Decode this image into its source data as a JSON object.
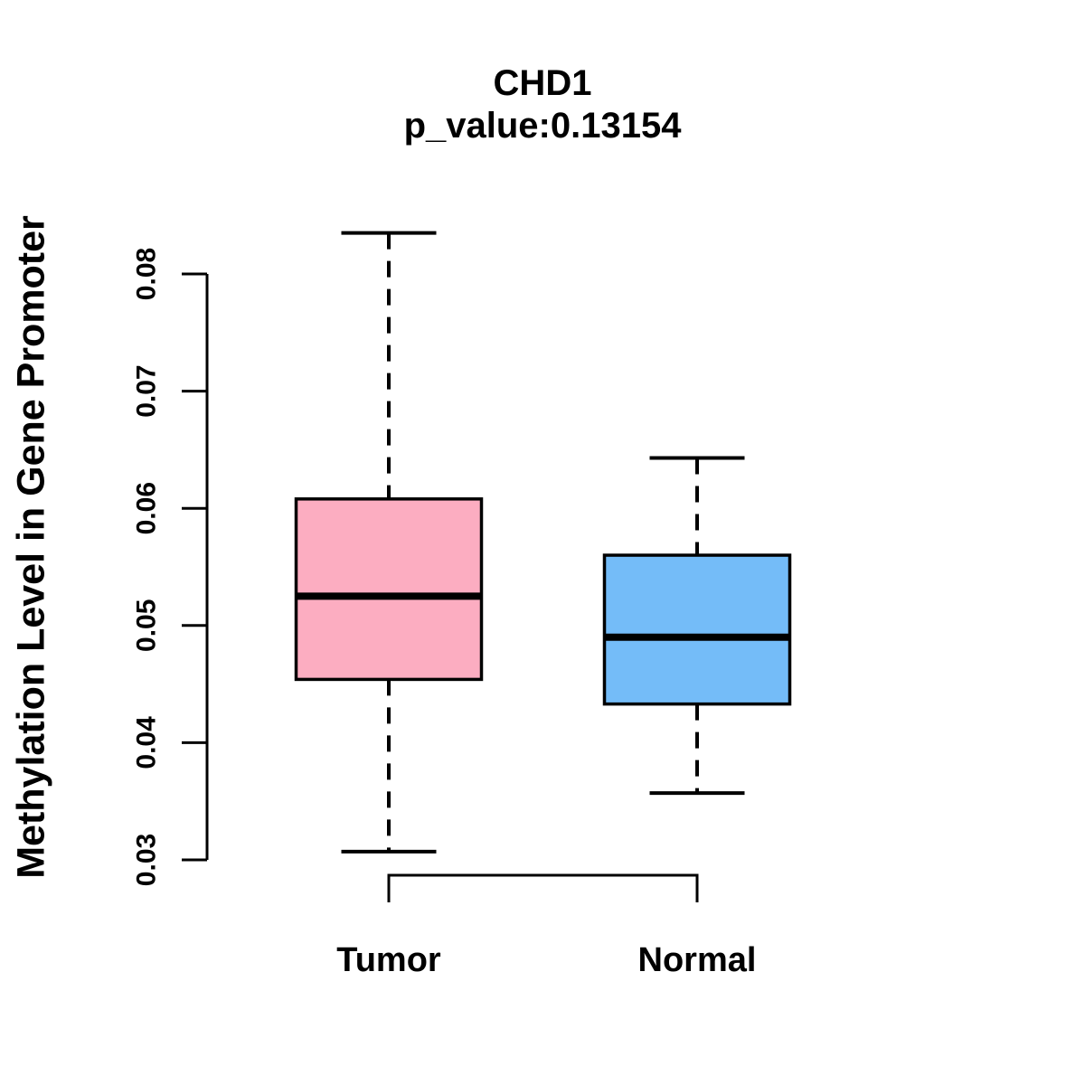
{
  "figure": {
    "background_color": "#ffffff",
    "text_color": "#000000",
    "line_color": "#000000"
  },
  "chart_data": {
    "type": "boxplot",
    "title": "CHD1",
    "subtitle": "p_value:0.13154",
    "xlabel": "",
    "ylabel": "Methylation Level in Gene Promoter",
    "grid": "off",
    "y_axis": {
      "range": [
        0.03,
        0.08
      ],
      "ticks": [
        0.03,
        0.04,
        0.05,
        0.06,
        0.07,
        0.08
      ],
      "tick_labels": [
        "0.03",
        "0.04",
        "0.05",
        "0.06",
        "0.07",
        "0.08"
      ]
    },
    "categories": [
      "Tumor",
      "Normal"
    ],
    "groups": [
      {
        "id": "tumor",
        "label": "Tumor",
        "color": "#FCADC1",
        "lower_whisker": 0.0307,
        "q1": 0.0454,
        "median": 0.0525,
        "q3": 0.0608,
        "upper_whisker": 0.0835,
        "outliers": []
      },
      {
        "id": "normal",
        "label": "Normal",
        "color": "#74BCF8",
        "lower_whisker": 0.0357,
        "q1": 0.0433,
        "median": 0.049,
        "q3": 0.056,
        "upper_whisker": 0.0643,
        "outliers": []
      }
    ]
  }
}
